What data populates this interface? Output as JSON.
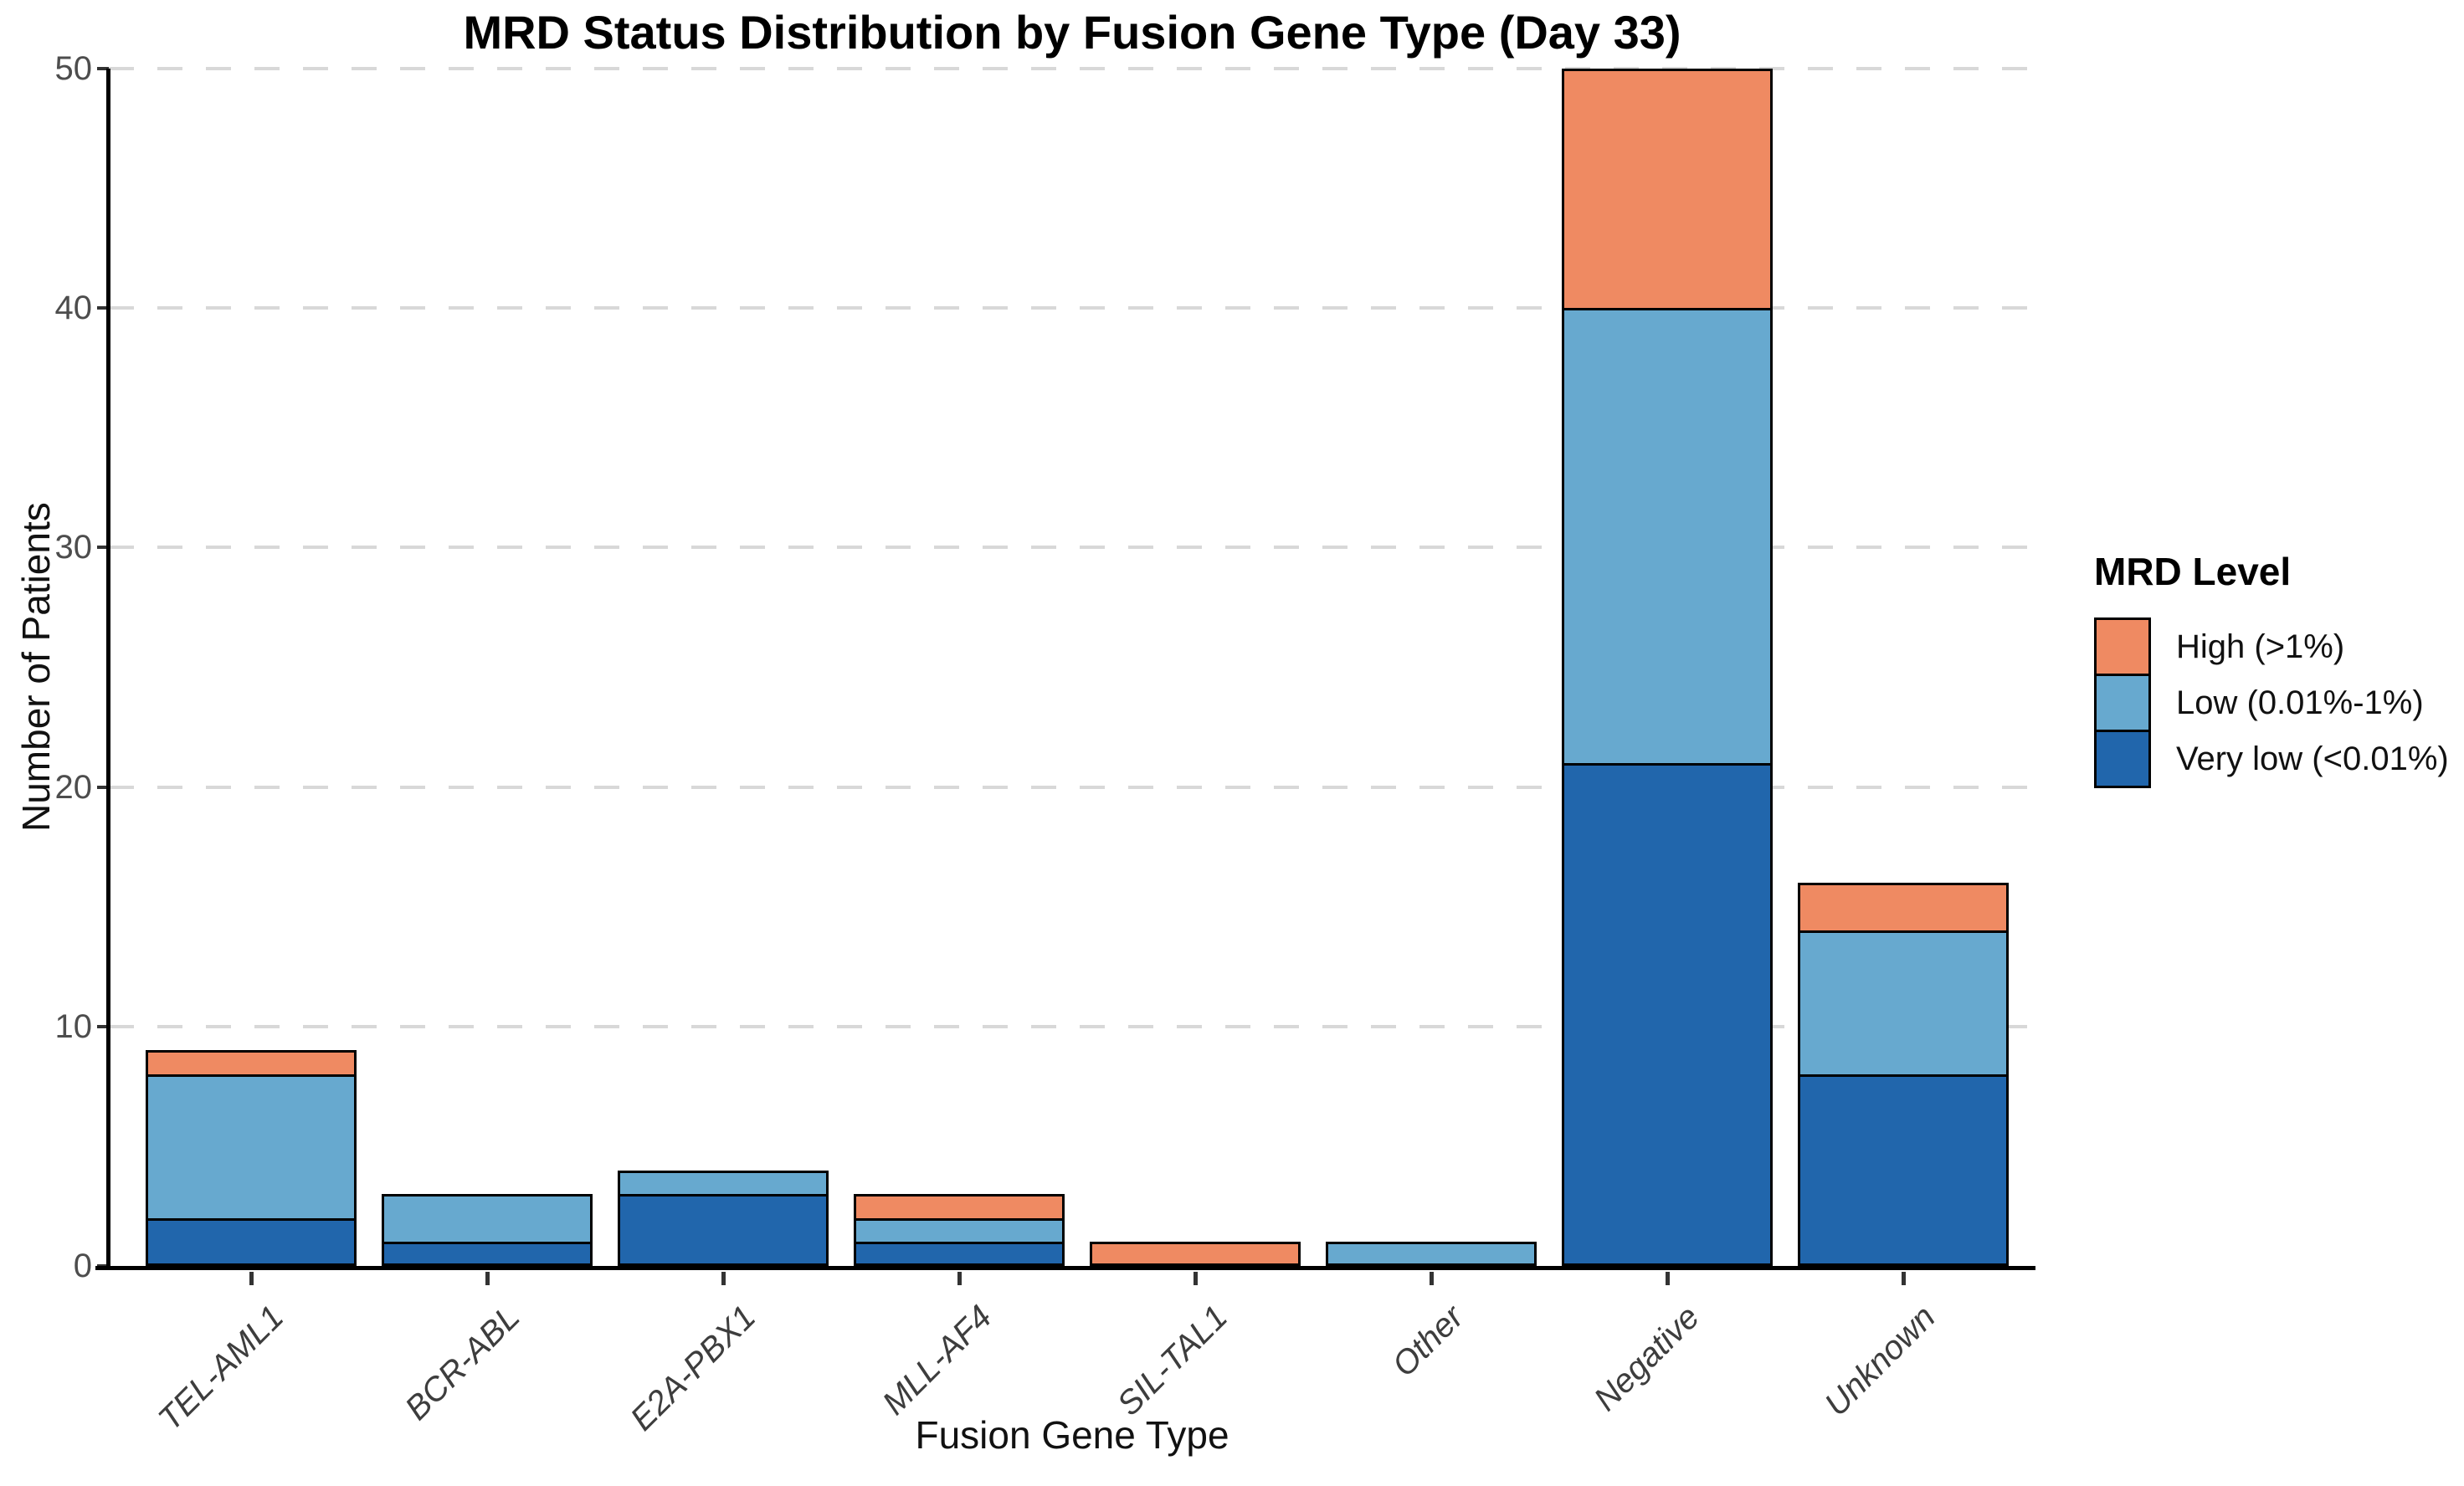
{
  "chart_data": {
    "type": "bar",
    "stacked": true,
    "title": "MRD Status Distribution by Fusion Gene Type (Day 33)",
    "xlabel": "Fusion Gene Type",
    "ylabel": "Number of Patients",
    "legend_title": "MRD Level",
    "legend_position": "right",
    "categories": [
      "TEL-AML1",
      "BCR-ABL",
      "E2A-PBX1",
      "MLL-AF4",
      "SIL-TAL1",
      "Other",
      "Negative",
      "Unknown"
    ],
    "series": [
      {
        "name": "Very low (<0.01%)",
        "color": "#2166AC",
        "values": [
          2,
          1,
          3,
          1,
          0,
          0,
          21,
          8
        ]
      },
      {
        "name": "Low (0.01%-1%)",
        "color": "#67A9CF",
        "values": [
          6,
          2,
          1,
          1,
          0,
          1,
          19,
          6
        ]
      },
      {
        "name": "High (>1%)",
        "color": "#EF8A62",
        "values": [
          1,
          0,
          0,
          1,
          1,
          0,
          10,
          2
        ]
      }
    ],
    "legend_order_top_to_bottom": [
      "High (>1%)",
      "Low (0.01%-1%)",
      "Very low (<0.01%)"
    ],
    "totals": [
      9,
      3,
      4,
      3,
      1,
      1,
      50,
      16
    ],
    "ylim": [
      0,
      50
    ],
    "yticks": [
      0,
      10,
      20,
      30,
      40,
      50
    ],
    "grid": "horizontal-dashed",
    "grid_color": "#d8d8d8",
    "axis_color": "#000000",
    "tick_label_color": "#4d4d4d"
  }
}
